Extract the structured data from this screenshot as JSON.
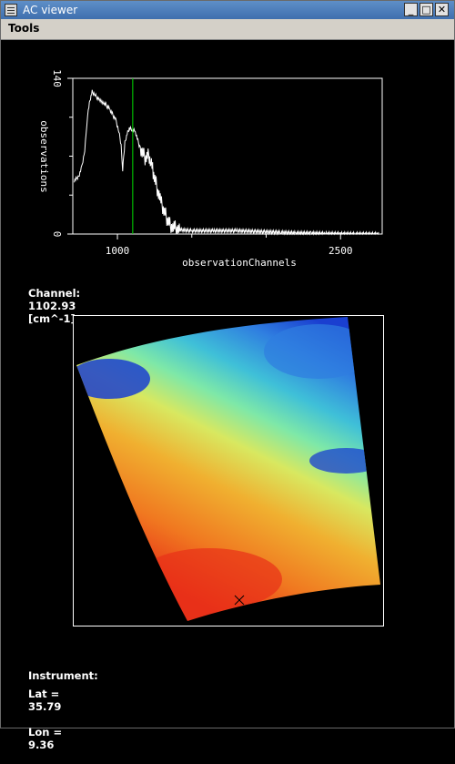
{
  "window": {
    "title": "AC viewer"
  },
  "menubar": {
    "items": [
      {
        "label": "Tools"
      }
    ]
  },
  "chart_data": {
    "type": "line",
    "xlabel": "observationChannels",
    "ylabel": "observations",
    "xlim": [
      700,
      2780
    ],
    "ylim": [
      0,
      140
    ],
    "x_ticks": [
      1000,
      2500
    ],
    "x_tick_labels": [
      "1000",
      "2500"
    ],
    "y_ticks": [
      0,
      140
    ],
    "y_tick_labels": [
      "0",
      "140"
    ],
    "cursor_x": 1102.93,
    "series": [
      {
        "values": [
          [
            710,
            48
          ],
          [
            740,
            52
          ],
          [
            760,
            60
          ],
          [
            780,
            75
          ],
          [
            790,
            90
          ],
          [
            800,
            108
          ],
          [
            815,
            120
          ],
          [
            830,
            128
          ],
          [
            850,
            125
          ],
          [
            880,
            120
          ],
          [
            910,
            118
          ],
          [
            950,
            112
          ],
          [
            990,
            102
          ],
          [
            1010,
            92
          ],
          [
            1025,
            80
          ],
          [
            1035,
            58
          ],
          [
            1042,
            70
          ],
          [
            1050,
            82
          ],
          [
            1065,
            90
          ],
          [
            1080,
            95
          ],
          [
            1100,
            94
          ],
          [
            1120,
            92
          ],
          [
            1150,
            78
          ],
          [
            1170,
            72
          ],
          [
            1190,
            68
          ],
          [
            1210,
            72
          ],
          [
            1225,
            65
          ],
          [
            1240,
            55
          ],
          [
            1260,
            45
          ],
          [
            1280,
            35
          ],
          [
            1300,
            25
          ],
          [
            1320,
            18
          ],
          [
            1340,
            12
          ],
          [
            1360,
            8
          ],
          [
            1380,
            6
          ],
          [
            1400,
            4
          ],
          [
            1500,
            3
          ],
          [
            1650,
            3
          ],
          [
            1800,
            3
          ],
          [
            2000,
            2
          ],
          [
            2100,
            1.5
          ],
          [
            2200,
            1
          ],
          [
            2300,
            0.8
          ],
          [
            2400,
            0.5
          ],
          [
            2500,
            0.3
          ],
          [
            2600,
            0.2
          ],
          [
            2760,
            0.1
          ]
        ]
      }
    ]
  },
  "channel": {
    "label": "Channel:",
    "value": "1102.93",
    "unit": "[cm^-1]"
  },
  "map": {
    "marker": "x-marker-icon",
    "colormap": [
      "#1a3fd0",
      "#2f7ee0",
      "#3fc0d8",
      "#7ee8a8",
      "#d8e860",
      "#f0b030",
      "#f07820",
      "#e83018"
    ]
  },
  "instrument": {
    "label": "Instrument:",
    "value": ""
  },
  "location": {
    "lat_label": "Lat =",
    "lat": "35.79",
    "lon_label": "Lon =",
    "lon": "9.36"
  }
}
